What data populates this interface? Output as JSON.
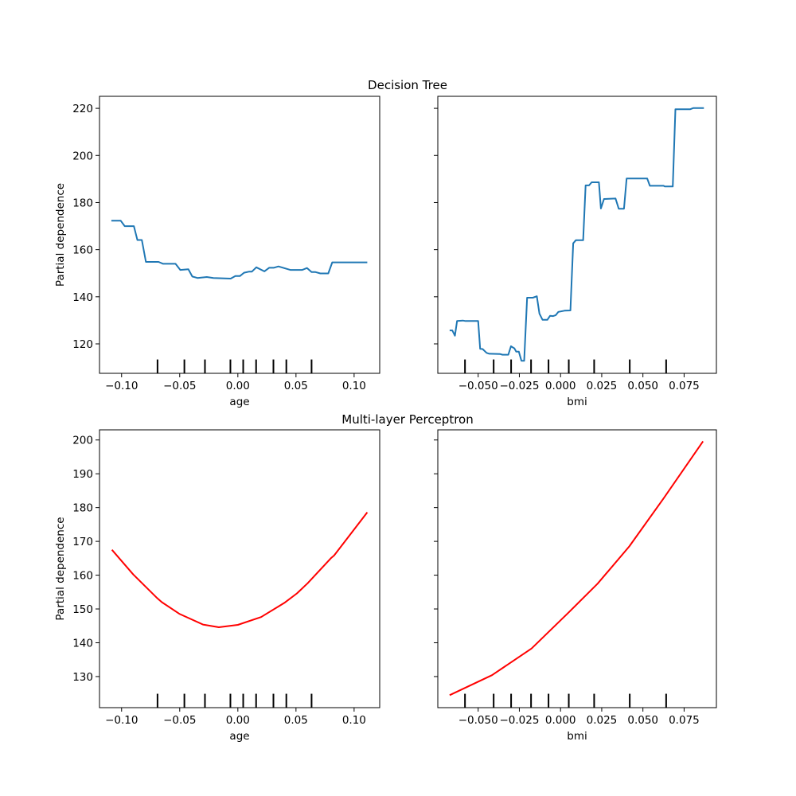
{
  "figure": {
    "row_titles": [
      "Decision Tree",
      "Multi-layer Perceptron"
    ]
  },
  "chart_data": [
    {
      "type": "line",
      "row_title": "Decision Tree",
      "xlabel": "age",
      "ylabel": "Partial dependence",
      "xlim": [
        -0.119,
        0.122
      ],
      "ylim": [
        107.5,
        225.1
      ],
      "xticks": [
        -0.1,
        -0.05,
        0.0,
        0.05,
        0.1
      ],
      "xtick_labels": [
        "−0.10",
        "−0.05",
        "0.00",
        "0.05",
        "0.10"
      ],
      "yticks": [
        120,
        140,
        160,
        180,
        200,
        220
      ],
      "ytick_labels": [
        "120",
        "140",
        "160",
        "180",
        "200",
        "220"
      ],
      "show_ytick_labels": true,
      "color": "#1f77b4",
      "deciles": [
        -0.0691,
        -0.046,
        -0.0283,
        -0.0064,
        0.0046,
        0.0157,
        0.0306,
        0.0417,
        0.0634
      ],
      "x": [
        -0.1088,
        -0.1008,
        -0.0973,
        -0.0894,
        -0.0864,
        -0.0826,
        -0.0791,
        -0.0682,
        -0.0643,
        -0.0536,
        -0.0495,
        -0.0426,
        -0.0392,
        -0.0347,
        -0.0267,
        -0.021,
        -0.0062,
        -0.0021,
        0.0018,
        0.0053,
        0.0098,
        0.0121,
        0.0159,
        0.0228,
        0.0269,
        0.0308,
        0.0349,
        0.0451,
        0.0554,
        0.0595,
        0.0634,
        0.0668,
        0.0709,
        0.0778,
        0.0812,
        0.1113
      ],
      "y": [
        172.3,
        172.3,
        170.0,
        170.0,
        164.1,
        164.1,
        154.8,
        154.8,
        154.0,
        154.0,
        151.4,
        151.7,
        148.6,
        148.0,
        148.4,
        148.0,
        147.7,
        148.8,
        148.8,
        150.2,
        150.7,
        150.7,
        152.5,
        150.8,
        152.3,
        152.3,
        152.9,
        151.4,
        151.4,
        152.2,
        150.5,
        150.5,
        149.9,
        149.9,
        154.6,
        154.6
      ]
    },
    {
      "type": "line",
      "row_title": "Decision Tree",
      "xlabel": "bmi",
      "ylabel": "",
      "xlim": [
        -0.0745,
        0.0946
      ],
      "ylim": [
        107.5,
        225.1
      ],
      "xticks": [
        -0.05,
        -0.025,
        0.0,
        0.025,
        0.05,
        0.075
      ],
      "xtick_labels": [
        "−0.050",
        "−0.025",
        "0.000",
        "0.025",
        "0.050",
        "0.075"
      ],
      "yticks": [
        120,
        140,
        160,
        180,
        200,
        220
      ],
      "ytick_labels": [],
      "show_ytick_labels": false,
      "color": "#1f77b4",
      "deciles": [
        -0.058,
        -0.0406,
        -0.03,
        -0.0179,
        -0.0073,
        0.005,
        0.0204,
        0.042,
        0.0641
      ],
      "x": [
        -0.0673,
        -0.0657,
        -0.0641,
        -0.0628,
        -0.0593,
        -0.0577,
        -0.0521,
        -0.05,
        -0.0488,
        -0.0473,
        -0.0449,
        -0.0433,
        -0.0368,
        -0.0352,
        -0.0317,
        -0.0301,
        -0.028,
        -0.0269,
        -0.0253,
        -0.0237,
        -0.0221,
        -0.0203,
        -0.0168,
        -0.0144,
        -0.0128,
        -0.0109,
        -0.008,
        -0.0064,
        -0.0045,
        -0.0029,
        -0.0013,
        0.0024,
        0.006,
        0.0077,
        0.0093,
        0.0137,
        0.0152,
        0.0173,
        0.0189,
        0.0233,
        0.0245,
        0.0264,
        0.0334,
        0.0353,
        0.0385,
        0.0401,
        0.0526,
        0.0542,
        0.0625,
        0.0633,
        0.0681,
        0.0697,
        0.0786,
        0.0805,
        0.087
      ],
      "y": [
        125.7,
        125.7,
        123.5,
        129.7,
        129.9,
        129.7,
        129.7,
        129.7,
        117.9,
        117.8,
        116.2,
        115.8,
        115.7,
        115.4,
        115.4,
        119.0,
        118.1,
        116.7,
        116.7,
        112.8,
        112.8,
        139.6,
        139.6,
        140.2,
        132.8,
        130.2,
        130.2,
        131.9,
        131.8,
        132.2,
        133.6,
        134.1,
        134.2,
        162.7,
        164.0,
        164.0,
        187.3,
        187.3,
        188.6,
        188.6,
        177.5,
        181.5,
        181.7,
        177.4,
        177.4,
        190.2,
        190.2,
        187.1,
        187.1,
        186.8,
        186.8,
        219.6,
        219.6,
        220.1,
        220.1
      ]
    },
    {
      "type": "line",
      "row_title": "Multi-layer Perceptron",
      "xlabel": "age",
      "ylabel": "Partial dependence",
      "xlim": [
        -0.119,
        0.122
      ],
      "ylim": [
        120.8,
        203.0
      ],
      "xticks": [
        -0.1,
        -0.05,
        0.0,
        0.05,
        0.1
      ],
      "xtick_labels": [
        "−0.10",
        "−0.05",
        "0.00",
        "0.05",
        "0.10"
      ],
      "yticks": [
        130,
        140,
        150,
        160,
        170,
        180,
        190,
        200
      ],
      "ytick_labels": [
        "130",
        "140",
        "150",
        "160",
        "170",
        "180",
        "190",
        "200"
      ],
      "show_ytick_labels": true,
      "color": "#ff0000",
      "deciles": [
        -0.0691,
        -0.046,
        -0.0283,
        -0.0064,
        0.0046,
        0.0157,
        0.0306,
        0.0417,
        0.0634
      ],
      "x": [
        -0.1083,
        -0.09,
        -0.07,
        -0.0654,
        -0.05,
        -0.03,
        -0.0164,
        0,
        0.02,
        0.04,
        0.0508,
        0.06,
        0.08,
        0.0828,
        0.1113
      ],
      "y": [
        167.5,
        160.2,
        153.4,
        152.0,
        148.5,
        145.4,
        144.6,
        145.3,
        147.6,
        151.8,
        154.6,
        157.6,
        165.0,
        165.8,
        178.6
      ]
    },
    {
      "type": "line",
      "row_title": "Multi-layer Perceptron",
      "xlabel": "bmi",
      "ylabel": "",
      "xlim": [
        -0.0745,
        0.0946
      ],
      "ylim": [
        120.8,
        203.0
      ],
      "xticks": [
        -0.05,
        -0.025,
        0.0,
        0.025,
        0.05,
        0.075
      ],
      "xtick_labels": [
        "−0.050",
        "−0.025",
        "0.000",
        "0.025",
        "0.050",
        "0.075"
      ],
      "yticks": [
        130,
        140,
        150,
        160,
        170,
        180,
        190,
        200
      ],
      "ytick_labels": [],
      "show_ytick_labels": false,
      "color": "#ff0000",
      "deciles": [
        -0.058,
        -0.0406,
        -0.03,
        -0.0179,
        -0.0073,
        0.005,
        0.0204,
        0.042,
        0.0641
      ],
      "x": [
        -0.0673,
        -0.0416,
        -0.0176,
        0.0048,
        0.0225,
        0.0417,
        0.0625,
        0.0865
      ],
      "y": [
        124.5,
        130.4,
        138.3,
        148.9,
        157.5,
        168.5,
        182.7,
        199.6
      ]
    }
  ]
}
